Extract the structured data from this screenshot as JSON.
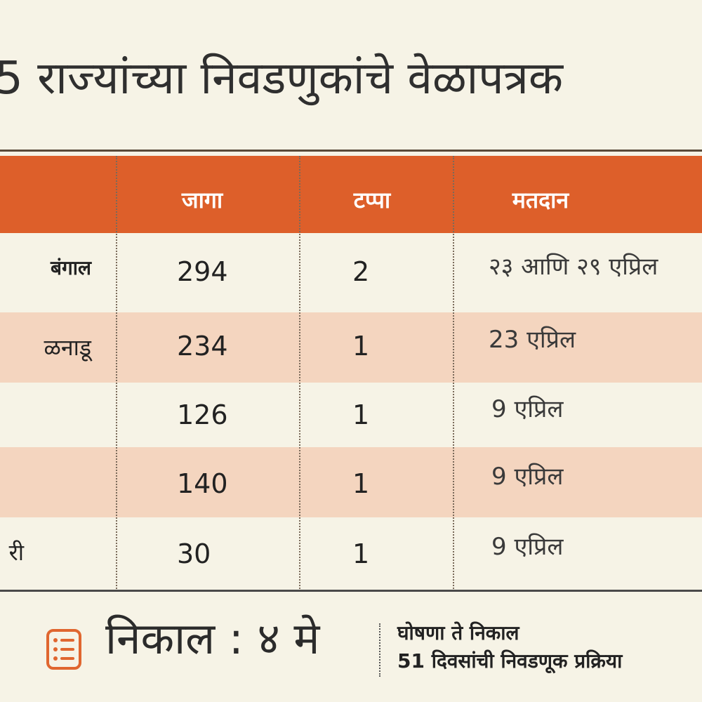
{
  "title": "5 राज्यांच्या निवडणुकांचे वेळापत्रक",
  "table": {
    "headers": {
      "seats": "जागा",
      "phases": "टप्पा",
      "polling": "मतदान"
    },
    "rows": [
      {
        "state": "बंगाल",
        "seats": "294",
        "phases": "2",
        "polling": "२३ आणि २९ एप्रिल"
      },
      {
        "state": "ळनाडू",
        "seats": "234",
        "phases": "1",
        "polling": "23 एप्रिल"
      },
      {
        "state": "",
        "seats": "126",
        "phases": "1",
        "polling": "9 एप्रिल"
      },
      {
        "state": "",
        "seats": "140",
        "phases": "1",
        "polling": "9 एप्रिल"
      },
      {
        "state": "री",
        "seats": "30",
        "phases": "1",
        "polling": "9 एप्रिल"
      }
    ]
  },
  "footer": {
    "icon": "list-icon",
    "result": "निकाल : ४ मे",
    "note_line1": "घोषणा ते निकाल",
    "note_line2": "51 दिवसांची निवडणूक प्रक्रिया"
  },
  "colors": {
    "header_bg": "#dd5f2a",
    "alt_row_bg": "#f4d5bf",
    "page_bg": "#f6f3e6"
  }
}
